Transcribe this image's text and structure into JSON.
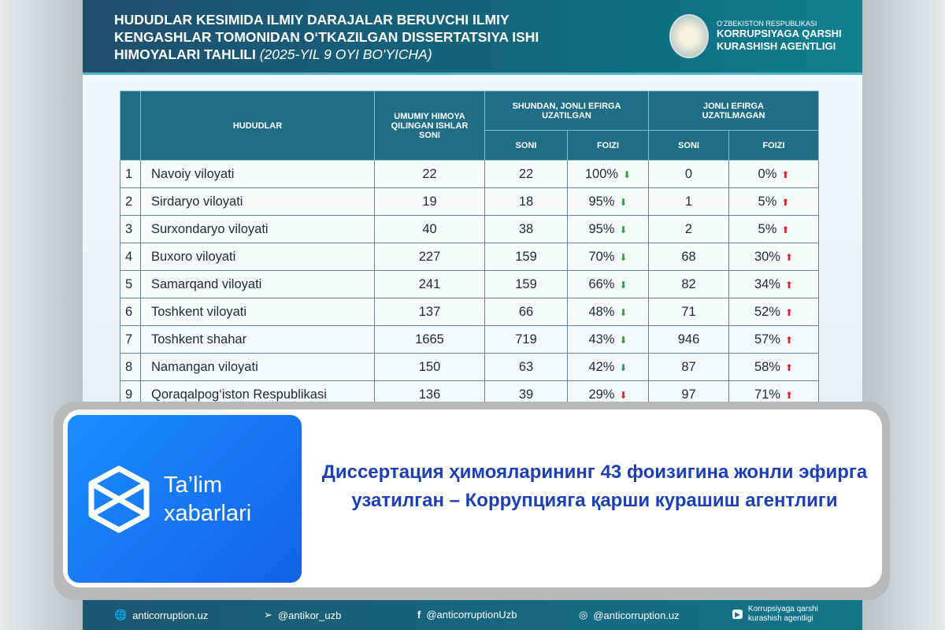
{
  "header": {
    "title": "HUDUDLAR KESIMIDA ILMIY DARAJALAR BERUVCHI ILMIY KENGASHLAR TOMONIDAN O‘TKAZILGAN DISSERTATSIYA ISHI HIMOYALARI TAHLILI",
    "period": "(2025-YIL 9 OYI BO'YICHA)",
    "agency_small": "O‘ZBEKISTON RESPUBLIKASI",
    "agency_name": "KORRUPSIYAGA QARSHI KURASHISH AGENTLIGI"
  },
  "table": {
    "col_region": "HUDUDLAR",
    "col_total": "UMUMIY HIMOYA QILINGAN ISHLAR SONI",
    "group_live": "SHUNDAN, JONLI EFIRGA UZATILGAN",
    "group_notlive": "JONLI EFIRGA UZATILMAGAN",
    "sub_count": "SONI",
    "sub_pct": "FOIZI",
    "rows": [
      {
        "n": "1",
        "region": "Navoiy viloyati",
        "total": "22",
        "live": "22",
        "live_pct": "100%",
        "not": "0",
        "not_pct": "0%"
      },
      {
        "n": "2",
        "region": "Sirdaryo viloyati",
        "total": "19",
        "live": "18",
        "live_pct": "95%",
        "not": "1",
        "not_pct": "5%"
      },
      {
        "n": "3",
        "region": "Surxondaryo viloyati",
        "total": "40",
        "live": "38",
        "live_pct": "95%",
        "not": "2",
        "not_pct": "5%"
      },
      {
        "n": "4",
        "region": "Buxoro viloyati",
        "total": "227",
        "live": "159",
        "live_pct": "70%",
        "not": "68",
        "not_pct": "30%"
      },
      {
        "n": "5",
        "region": "Samarqand viloyati",
        "total": "241",
        "live": "159",
        "live_pct": "66%",
        "not": "82",
        "not_pct": "34%"
      },
      {
        "n": "6",
        "region": "Toshkent viloyati",
        "total": "137",
        "live": "66",
        "live_pct": "48%",
        "not": "71",
        "not_pct": "52%"
      },
      {
        "n": "7",
        "region": "Toshkent shahar",
        "total": "1665",
        "live": "719",
        "live_pct": "43%",
        "not": "946",
        "not_pct": "57%"
      },
      {
        "n": "8",
        "region": "Namangan viloyati",
        "total": "150",
        "live": "63",
        "live_pct": "42%",
        "not": "87",
        "not_pct": "58%"
      },
      {
        "n": "9",
        "region": "Qoraqalpog‘iston Respublikasi",
        "total": "136",
        "live": "39",
        "live_pct": "29%",
        "not": "97",
        "not_pct": "71%"
      }
    ]
  },
  "colors": {
    "header": "#1f6e86",
    "arrow_green": "#27a14a",
    "arrow_red": "#e0232d",
    "headline": "#1d3fb5"
  },
  "brand": {
    "name": "Ta’lim xabarlari"
  },
  "headline": "Диссертация ҳимояларининг 43 фоизигина жонли эфирга узатилган – Коррупцияга қарши курашиш агентлиги",
  "footer": {
    "website": "anticorruption.uz",
    "telegram": "@antikor_uzb",
    "facebook": "@anticorruptionUzb",
    "instagram": "@anticorruption.uz",
    "youtube": "Korrupsiyaga qarshi kurashish agentligi"
  }
}
